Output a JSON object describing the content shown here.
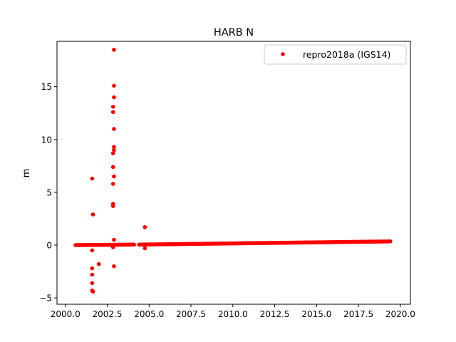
{
  "chart_data": {
    "type": "scatter",
    "title": "HARB N",
    "xlabel": "",
    "ylabel": "m",
    "xlim": [
      1999.5,
      2020.6
    ],
    "ylim": [
      -5.6,
      19.3
    ],
    "xticks": [
      2000.0,
      2002.5,
      2005.0,
      2007.5,
      2010.0,
      2012.5,
      2015.0,
      2017.5,
      2020.0
    ],
    "xtick_labels": [
      "2000.0",
      "2002.5",
      "2005.0",
      "2007.5",
      "2010.0",
      "2012.5",
      "2015.0",
      "2017.5",
      "2020.0"
    ],
    "yticks": [
      -5,
      0,
      5,
      10,
      15
    ],
    "ytick_labels": [
      "−5",
      "0",
      "5",
      "10",
      "15"
    ],
    "grid": false,
    "legend_position": "top-right",
    "series": [
      {
        "name": "repro2018a (IGS14)",
        "color": "#ff0000",
        "baseline_segments": [
          {
            "x_start": 2000.6,
            "x_end": 2004.1,
            "y_start": 0.0,
            "y_end": 0.05
          },
          {
            "x_start": 2004.4,
            "x_end": 2019.4,
            "y_start": 0.05,
            "y_end": 0.35
          }
        ],
        "outliers": [
          {
            "x": 2001.6,
            "y": 6.3
          },
          {
            "x": 2001.65,
            "y": 2.9
          },
          {
            "x": 2001.6,
            "y": -0.5
          },
          {
            "x": 2001.6,
            "y": -2.2
          },
          {
            "x": 2001.6,
            "y": -2.8
          },
          {
            "x": 2001.6,
            "y": -3.6
          },
          {
            "x": 2001.6,
            "y": -4.3
          },
          {
            "x": 2001.65,
            "y": -4.4
          },
          {
            "x": 2002.0,
            "y": -1.8
          },
          {
            "x": 2002.9,
            "y": 18.5
          },
          {
            "x": 2002.9,
            "y": 15.1
          },
          {
            "x": 2002.9,
            "y": 14.0
          },
          {
            "x": 2002.85,
            "y": 13.1
          },
          {
            "x": 2002.85,
            "y": 12.6
          },
          {
            "x": 2002.9,
            "y": 11.0
          },
          {
            "x": 2002.9,
            "y": 9.3
          },
          {
            "x": 2002.9,
            "y": 9.0
          },
          {
            "x": 2002.85,
            "y": 8.7
          },
          {
            "x": 2002.85,
            "y": 7.4
          },
          {
            "x": 2002.9,
            "y": 6.5
          },
          {
            "x": 2002.85,
            "y": 5.8
          },
          {
            "x": 2002.85,
            "y": 3.9
          },
          {
            "x": 2002.85,
            "y": 3.7
          },
          {
            "x": 2002.9,
            "y": 0.5
          },
          {
            "x": 2002.85,
            "y": -0.2
          },
          {
            "x": 2002.9,
            "y": -2.0
          },
          {
            "x": 2004.75,
            "y": 1.7
          },
          {
            "x": 2004.75,
            "y": -0.3
          }
        ]
      }
    ]
  }
}
